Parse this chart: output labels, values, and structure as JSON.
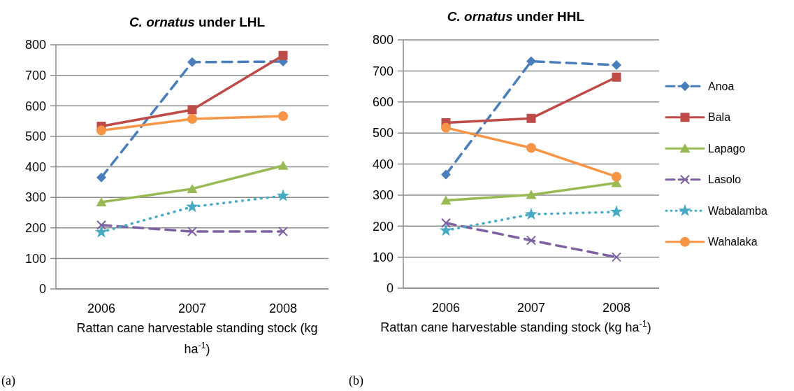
{
  "chart_data": [
    {
      "type": "line",
      "title": "C. ornatus under LHL",
      "xlabel": "Rattan cane harvestable standing stock (kg ha$^{-1}$)",
      "categories": [
        "2006",
        "2007",
        "2008"
      ],
      "ylim": [
        0,
        800
      ],
      "yticks": [
        0,
        100,
        200,
        300,
        400,
        500,
        600,
        700,
        800
      ],
      "grid": "y",
      "legend": false,
      "annotations": [
        "(a)"
      ],
      "series": [
        {
          "color": "#4a7ebb",
          "marker": "diamond",
          "line_style": "dashed",
          "values": [
            365,
            743,
            745
          ]
        },
        {
          "color": "#be4b48",
          "marker": "square",
          "line_style": "solid",
          "values": [
            533,
            587,
            765
          ]
        },
        {
          "color": "#98b954",
          "marker": "triangle",
          "line_style": "solid",
          "values": [
            284,
            328,
            404
          ]
        },
        {
          "color": "#7d60a0",
          "marker": "cross",
          "line_style": "dashed",
          "values": [
            209,
            188,
            188
          ]
        },
        {
          "color": "#46aac5",
          "marker": "star",
          "line_style": "dotted",
          "values": [
            186,
            269,
            305
          ]
        },
        {
          "color": "#f69546",
          "marker": "circle",
          "line_style": "solid",
          "values": [
            519,
            557,
            566
          ]
        }
      ]
    },
    {
      "type": "line",
      "title": "C. ornatus under HHL",
      "xlabel": "Rattan cane harvestable standing stock (kg ha$^{-1}$)",
      "categories": [
        "2006",
        "2007",
        "2008"
      ],
      "ylim": [
        0,
        800
      ],
      "yticks": [
        0,
        100,
        200,
        300,
        400,
        500,
        600,
        700,
        800
      ],
      "grid": "y",
      "legend": "right",
      "annotations": [
        "(b)"
      ],
      "series": [
        {
          "name": "Anoa",
          "color": "#4a7ebb",
          "marker": "diamond",
          "line_style": "dashed",
          "values": [
            366,
            731,
            719
          ]
        },
        {
          "name": "Bala",
          "color": "#be4b48",
          "marker": "square",
          "line_style": "solid",
          "values": [
            533,
            547,
            680
          ]
        },
        {
          "name": "Lapago",
          "color": "#98b954",
          "marker": "triangle",
          "line_style": "solid",
          "values": [
            283,
            301,
            339
          ]
        },
        {
          "name": "Lasolo",
          "color": "#7d60a0",
          "marker": "cross",
          "line_style": "dashed",
          "values": [
            210,
            154,
            100
          ]
        },
        {
          "name": "Wabalamba",
          "color": "#46aac5",
          "marker": "star",
          "line_style": "dotted",
          "values": [
            186,
            238,
            246
          ]
        },
        {
          "name": "Wahalaka",
          "color": "#f69546",
          "marker": "circle",
          "line_style": "solid",
          "values": [
            517,
            452,
            359
          ]
        }
      ]
    }
  ]
}
